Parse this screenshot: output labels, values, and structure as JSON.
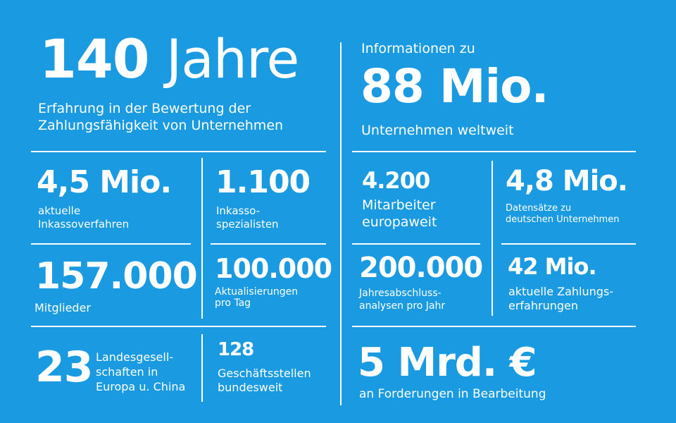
{
  "left": {
    "hero": {
      "number": "140",
      "unit": "Jahre",
      "desc_line1": "Erfahrung in der Bewertung der",
      "desc_line2": "Zahlungsfähigkeit von Unternehmen"
    },
    "inkasso": {
      "value": "4,5 Mio.",
      "line1": "aktuelle",
      "line2": "Inkassoverfahren"
    },
    "spezialisten": {
      "value": "1.100",
      "line1": "Inkasso-",
      "line2": "spezialisten"
    },
    "mitglieder": {
      "value": "157.000",
      "line1": "Mitglieder"
    },
    "aktualisierungen": {
      "value": "100.000",
      "line1": "Aktualisierungen",
      "line2": "pro Tag"
    },
    "landesgesellschaften": {
      "value": "23",
      "line1": "Landesgesell-",
      "line2": "schaften in",
      "line3": "Europa u. China"
    },
    "geschaeftsstellen": {
      "value": "128",
      "line1": "Geschäftsstellen",
      "line2": "bundesweit"
    }
  },
  "right": {
    "hero": {
      "pre": "Informationen zu",
      "number": "88 Mio.",
      "desc": "Unternehmen weltweit"
    },
    "mitarbeiter": {
      "value": "4.200",
      "line1": "Mitarbeiter",
      "line2": "europaweit"
    },
    "datensaetze": {
      "value": "4,8 Mio.",
      "line1": "Datensätze zu",
      "line2": "deutschen Unternehmen"
    },
    "jahresabschluss": {
      "value": "200.000",
      "line1": "Jahresabschluss-",
      "line2": "analysen pro Jahr"
    },
    "zahlungserfahrungen": {
      "value": "42 Mio.",
      "line1": "aktuelle Zahlungs-",
      "line2": "erfahrungen"
    },
    "forderungen": {
      "value": "5 Mrd. €",
      "line1": "an Forderungen in Bearbeitung"
    }
  }
}
